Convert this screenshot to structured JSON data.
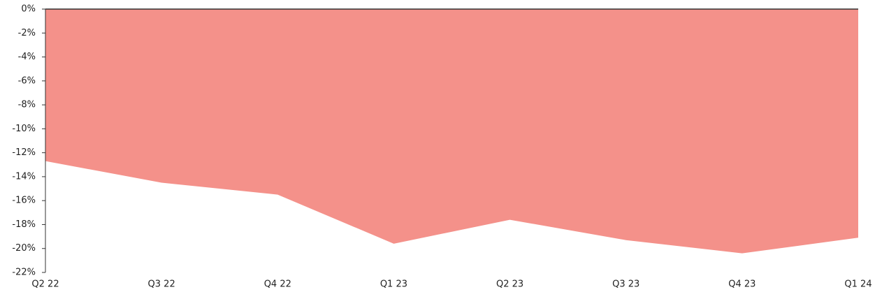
{
  "chart_data": {
    "type": "area",
    "categories": [
      "Q2 22",
      "Q3 22",
      "Q4 22",
      "Q1 23",
      "Q2 23",
      "Q3 23",
      "Q4 23",
      "Q1 24"
    ],
    "values": [
      -12.7,
      -14.5,
      -15.5,
      -19.6,
      -17.6,
      -19.3,
      -20.4,
      -19.1
    ],
    "color": "#f4918a",
    "ylim": [
      -22,
      0
    ],
    "yticks": [
      {
        "value": 0,
        "label": "0%"
      },
      {
        "value": -2,
        "label": "-2%"
      },
      {
        "value": -4,
        "label": "-4%"
      },
      {
        "value": -6,
        "label": "-6%"
      },
      {
        "value": -8,
        "label": "-8%"
      },
      {
        "value": -10,
        "label": "-10%"
      },
      {
        "value": -12,
        "label": "-12%"
      },
      {
        "value": -14,
        "label": "-14%"
      },
      {
        "value": -16,
        "label": "-16%"
      },
      {
        "value": -18,
        "label": "-18%"
      },
      {
        "value": -20,
        "label": "-20%"
      },
      {
        "value": -22,
        "label": "-22%"
      }
    ]
  }
}
